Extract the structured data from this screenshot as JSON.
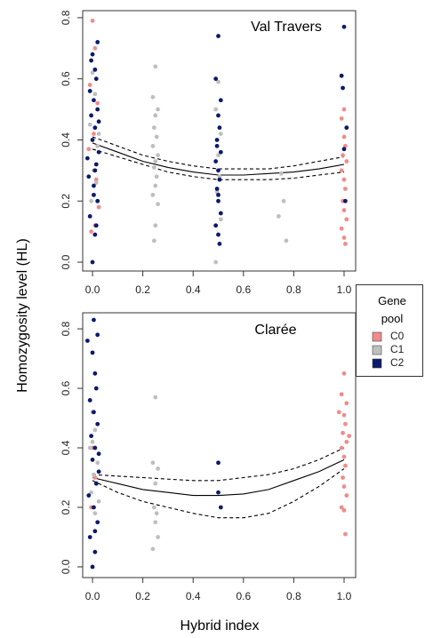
{
  "chart_data": [
    {
      "type": "scatter",
      "title": "Val Travers",
      "ylabel": "Homozygosity level (HL)",
      "legend": {
        "title": "Gene pool",
        "position": "right"
      },
      "xlim": [
        -0.039,
        1.046
      ],
      "ylim": [
        -0.029,
        0.823
      ],
      "xticks": [
        {
          "value": 0,
          "label": "0.0"
        },
        0.2,
        0.4,
        0.6,
        0.8,
        {
          "value": 1,
          "label": "1.0"
        }
      ],
      "yticks": [
        {
          "value": 0,
          "label": "0.0"
        },
        0.2,
        0.4,
        0.6,
        0.8
      ],
      "series": [
        {
          "name": "C0",
          "color": "#f08c8c",
          "x": [
            0,
            0.01,
            -0.01,
            0.02,
            0.005,
            -0.015,
            0.015,
            0.025,
            0.01,
            -0.005,
            1.0,
            0.99,
            1.01,
            1.0,
            1.005,
            0.995,
            1.01,
            0.99,
            1.0,
            1.005,
            0.995,
            1.0,
            1.01,
            0.99,
            1.0,
            1.005
          ],
          "values": [
            0.79,
            0.7,
            0.58,
            0.52,
            0.42,
            0.37,
            0.27,
            0.18,
            0.12,
            0.1,
            0.5,
            0.47,
            0.44,
            0.41,
            0.38,
            0.35,
            0.33,
            0.3,
            0.27,
            0.24,
            0.2,
            0.17,
            0.14,
            0.11,
            0.08,
            0.06
          ]
        },
        {
          "name": "C1",
          "color": "#bfbfbf",
          "x": [
            0,
            0.01,
            -0.01,
            0.02,
            0.005,
            0.015,
            -0.005,
            0.025,
            0.25,
            0.24,
            0.26,
            0.25,
            0.245,
            0.255,
            0.24,
            0.26,
            0.25,
            0.245,
            0.255,
            0.25,
            0.24,
            0.26,
            0.25,
            0.245,
            0.5,
            0.49,
            0.51,
            0.5,
            0.505,
            0.495,
            0.51,
            0.49,
            0.75,
            0.76,
            0.74,
            0.77
          ],
          "values": [
            0.62,
            0.55,
            0.45,
            0.38,
            0.3,
            0.26,
            0.2,
            0.42,
            0.64,
            0.54,
            0.5,
            0.48,
            0.44,
            0.41,
            0.38,
            0.35,
            0.33,
            0.31,
            0.28,
            0.25,
            0.22,
            0.19,
            0.12,
            0.07,
            0.59,
            0.5,
            0.42,
            0.35,
            0.28,
            0.23,
            0.14,
            0.0,
            0.29,
            0.2,
            0.15,
            0.07
          ]
        },
        {
          "name": "C2",
          "color": "#0b1a6b",
          "x": [
            0,
            0.01,
            -0.01,
            0.02,
            0.005,
            -0.015,
            0.015,
            0.025,
            0,
            0.01,
            -0.005,
            0.02,
            0.005,
            -0.01,
            0.015,
            0.01,
            0,
            0.02,
            -0.02,
            0.005,
            0.01,
            0.025,
            -0.005,
            0.015,
            0.5,
            0.49,
            0.51,
            0.5,
            0.505,
            0.495,
            0.51,
            0.49,
            0.5,
            0.505,
            0.495,
            0.5,
            0.51,
            0.49,
            0.5,
            0.505,
            0.495,
            0.5,
            1.0,
            0.99,
            1.01,
            1.0,
            1.005,
            0.995
          ],
          "values": [
            0.0,
            0.09,
            0.15,
            0.2,
            0.25,
            0.28,
            0.32,
            0.36,
            0.4,
            0.44,
            0.48,
            0.5,
            0.53,
            0.56,
            0.6,
            0.63,
            0.68,
            0.72,
            0.34,
            0.22,
            0.3,
            0.46,
            0.66,
            0.12,
            0.74,
            0.6,
            0.53,
            0.48,
            0.44,
            0.4,
            0.36,
            0.33,
            0.3,
            0.27,
            0.24,
            0.2,
            0.16,
            0.12,
            0.09,
            0.06,
            0.38,
            0.22,
            0.77,
            0.61,
            0.44,
            0.37,
            0.2,
            0.57
          ]
        }
      ],
      "curves": [
        {
          "style": "solid",
          "color": "#000000",
          "x": [
            0,
            0.1,
            0.2,
            0.3,
            0.4,
            0.5,
            0.6,
            0.7,
            0.8,
            0.9,
            1.0
          ],
          "values": [
            0.39,
            0.36,
            0.33,
            0.31,
            0.295,
            0.285,
            0.285,
            0.29,
            0.295,
            0.305,
            0.32
          ]
        },
        {
          "style": "dashed",
          "color": "#000000",
          "x": [
            0,
            0.1,
            0.2,
            0.3,
            0.4,
            0.5,
            0.6,
            0.7,
            0.8,
            0.9,
            1.0
          ],
          "values": [
            0.41,
            0.38,
            0.35,
            0.33,
            0.315,
            0.305,
            0.305,
            0.305,
            0.315,
            0.33,
            0.345
          ]
        },
        {
          "style": "dashed",
          "color": "#000000",
          "x": [
            0,
            0.1,
            0.2,
            0.3,
            0.4,
            0.5,
            0.6,
            0.7,
            0.8,
            0.9,
            1.0
          ],
          "values": [
            0.37,
            0.345,
            0.32,
            0.295,
            0.28,
            0.27,
            0.27,
            0.27,
            0.275,
            0.285,
            0.295
          ]
        }
      ]
    },
    {
      "type": "scatter",
      "title": "Clarée",
      "xlabel": "Hybrid index",
      "xlim": [
        -0.039,
        1.046
      ],
      "ylim": [
        -0.036,
        0.854
      ],
      "xticks": [
        {
          "value": 0,
          "label": "0.0"
        },
        0.2,
        0.4,
        0.6,
        0.8,
        {
          "value": 1,
          "label": "1.0"
        }
      ],
      "yticks": [
        {
          "value": 0,
          "label": "0.0"
        },
        0.2,
        0.4,
        0.6,
        0.8
      ],
      "series": [
        {
          "name": "C0",
          "color": "#f08c8c",
          "x": [
            0,
            0.01,
            -0.005,
            1.0,
            0.99,
            1.01,
            1.0,
            1.005,
            0.995,
            1.01,
            0.99,
            1.0,
            1.005,
            0.995,
            1.0,
            1.01,
            0.99,
            1.0,
            1.005,
            1.02,
            0.98
          ],
          "values": [
            0.4,
            0.3,
            0.2,
            0.65,
            0.58,
            0.55,
            0.51,
            0.48,
            0.45,
            0.42,
            0.4,
            0.37,
            0.34,
            0.3,
            0.27,
            0.24,
            0.2,
            0.19,
            0.11,
            0.44,
            0.52
          ]
        },
        {
          "name": "C1",
          "color": "#bfbfbf",
          "x": [
            0,
            0.01,
            -0.01,
            0.02,
            0.005,
            0.015,
            -0.005,
            0.025,
            0.01,
            0,
            0.25,
            0.24,
            0.26,
            0.25,
            0.245,
            0.255,
            0.25,
            0.26,
            0.24
          ],
          "values": [
            0.52,
            0.46,
            0.4,
            0.35,
            0.31,
            0.28,
            0.25,
            0.22,
            0.18,
            0.42,
            0.57,
            0.35,
            0.33,
            0.28,
            0.2,
            0.18,
            0.15,
            0.1,
            0.06
          ]
        },
        {
          "name": "C2",
          "color": "#0b1a6b",
          "x": [
            0,
            0.01,
            -0.01,
            0.02,
            0.005,
            -0.015,
            0.015,
            0.025,
            0,
            0.01,
            -0.005,
            0.02,
            0.005,
            -0.01,
            0.015,
            0.01,
            0,
            0.02,
            -0.02,
            0.005,
            0.01,
            0.025,
            0.5,
            0.5,
            0.51
          ],
          "values": [
            0.0,
            0.05,
            0.1,
            0.15,
            0.2,
            0.24,
            0.28,
            0.32,
            0.36,
            0.4,
            0.44,
            0.48,
            0.52,
            0.56,
            0.6,
            0.65,
            0.72,
            0.78,
            0.76,
            0.83,
            0.12,
            0.38,
            0.35,
            0.25,
            0.2
          ]
        }
      ],
      "curves": [
        {
          "style": "solid",
          "color": "#000000",
          "x": [
            0,
            0.1,
            0.2,
            0.3,
            0.4,
            0.5,
            0.6,
            0.7,
            0.8,
            0.9,
            1.0
          ],
          "values": [
            0.3,
            0.28,
            0.26,
            0.25,
            0.24,
            0.24,
            0.245,
            0.26,
            0.29,
            0.32,
            0.36
          ]
        },
        {
          "style": "dashed",
          "color": "#000000",
          "x": [
            0,
            0.1,
            0.2,
            0.3,
            0.4,
            0.5,
            0.6,
            0.7,
            0.8,
            0.9,
            1.0
          ],
          "values": [
            0.31,
            0.305,
            0.3,
            0.295,
            0.29,
            0.29,
            0.3,
            0.31,
            0.33,
            0.36,
            0.4
          ]
        },
        {
          "style": "dashed",
          "color": "#000000",
          "x": [
            0,
            0.1,
            0.2,
            0.3,
            0.4,
            0.5,
            0.6,
            0.7,
            0.8,
            0.9,
            1.0
          ],
          "values": [
            0.29,
            0.25,
            0.22,
            0.2,
            0.18,
            0.165,
            0.165,
            0.18,
            0.22,
            0.27,
            0.33
          ]
        }
      ]
    }
  ]
}
